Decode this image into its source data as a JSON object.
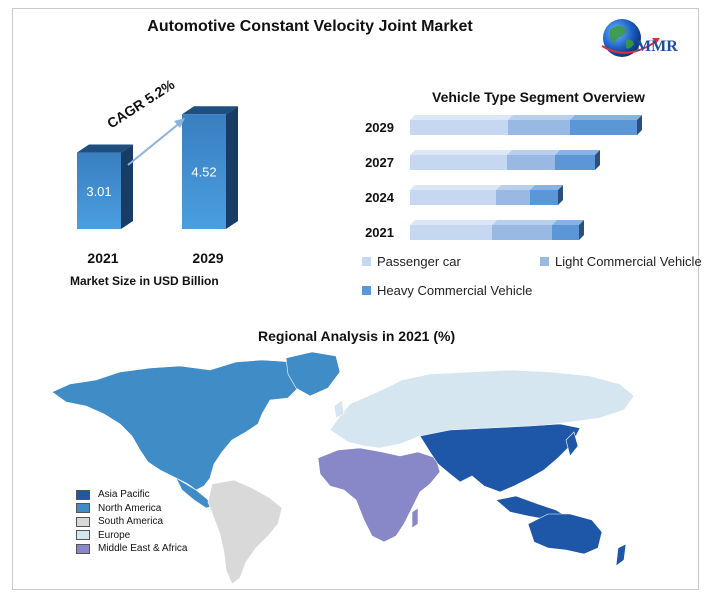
{
  "title": "Automotive Constant Velocity Joint Market",
  "logo": {
    "text": "MMR"
  },
  "market_size": {
    "caption": "Market Size in USD Billion",
    "cagr_label": "CAGR 5.2%"
  },
  "segment_chart": {
    "title": "Vehicle Type Segment Overview"
  },
  "map": {
    "title": "Regional Analysis in 2021 (%)"
  },
  "colors": {
    "bar_front": "#3f8fd0",
    "bar_side": "#173c66",
    "bar_top": "#1d4f80",
    "passenger": "#c5d7f1",
    "lcv": "#99b9e3",
    "hcv": "#5b97d6",
    "asia_pacific": "#1f57a8",
    "north_america": "#3f8cc6",
    "south_america": "#d9d9d9",
    "europe": "#d6e6f0",
    "mea": "#8888c8"
  },
  "chart_data": [
    {
      "type": "bar",
      "categories": [
        "2021",
        "2029"
      ],
      "values": [
        3.01,
        4.52
      ],
      "data_labels": [
        "3.01",
        "4.52"
      ],
      "title": "",
      "xlabel": "Market Size in USD Billion",
      "ylabel": ""
    },
    {
      "type": "bar",
      "orientation": "horizontal",
      "stacked": true,
      "title": "Vehicle Type Segment Overview",
      "categories": [
        "2029",
        "2027",
        "2024",
        "2021"
      ],
      "series": [
        {
          "name": "Passenger car",
          "values": [
            98,
            97,
            86,
            82
          ]
        },
        {
          "name": "Light Commercial Vehicle",
          "values": [
            62,
            48,
            34,
            60
          ]
        },
        {
          "name": "Heavy Commercial Vehicle",
          "values": [
            67,
            40,
            28,
            27
          ]
        }
      ],
      "legend": "bottom"
    },
    {
      "type": "map",
      "title": "Regional Analysis in 2021 (%)",
      "legend_entries": [
        "Asia Pacific",
        "North America",
        "South America",
        "Europe",
        "Middle East & Africa"
      ],
      "legend": "bottom-left"
    }
  ]
}
